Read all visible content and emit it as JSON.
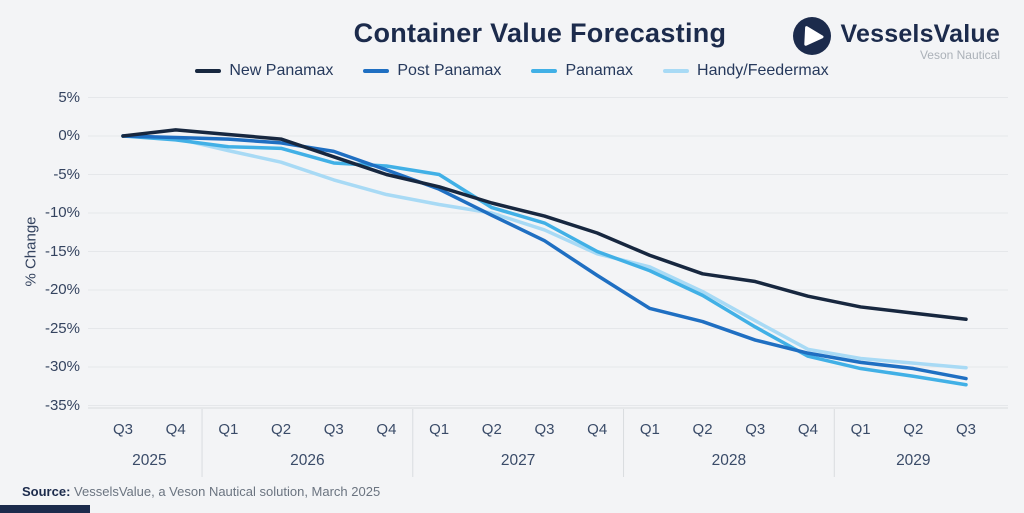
{
  "logo": {
    "brand": "VesselsValue",
    "sub": "Veson Nautical"
  },
  "source": {
    "label": "Source:",
    "text": " VesselsValue, a Veson Nautical solution, March 2025"
  },
  "colors": {
    "navy": "#1c2b4c",
    "grid": "#e5e7ea",
    "axis": "#d9dcdf",
    "background": "#f3f4f6"
  },
  "chart_data": {
    "type": "line",
    "title": "Container Value Forecasting",
    "ylabel": "% Change",
    "ylim": [
      -35,
      5
    ],
    "yticks": [
      5,
      0,
      -5,
      -10,
      -15,
      -20,
      -25,
      -30,
      -35
    ],
    "ytick_suffix": "%",
    "grid": true,
    "legend_position": "top",
    "categories": [
      "Q3",
      "Q4",
      "Q1",
      "Q2",
      "Q3",
      "Q4",
      "Q1",
      "Q2",
      "Q3",
      "Q4",
      "Q1",
      "Q2",
      "Q3",
      "Q4",
      "Q1",
      "Q2",
      "Q3"
    ],
    "year_groups": [
      {
        "year": "2025",
        "quarters": 2
      },
      {
        "year": "2026",
        "quarters": 4
      },
      {
        "year": "2027",
        "quarters": 4
      },
      {
        "year": "2028",
        "quarters": 4
      },
      {
        "year": "2029",
        "quarters": 3
      }
    ],
    "series": [
      {
        "name": "New Panamax",
        "color": "#17273f",
        "values": [
          0,
          0.8,
          0.2,
          -0.4,
          -2.7,
          -5.0,
          -6.6,
          -8.7,
          -10.4,
          -12.6,
          -15.5,
          -17.9,
          -18.9,
          -20.8,
          -22.2,
          -23.0,
          -23.8
        ]
      },
      {
        "name": "Post Panamax",
        "color": "#1f6fc2",
        "values": [
          0,
          -0.2,
          -0.4,
          -0.9,
          -2.0,
          -4.4,
          -6.9,
          -10.3,
          -13.6,
          -18.1,
          -22.4,
          -24.1,
          -26.5,
          -28.2,
          -29.4,
          -30.2,
          -31.5
        ]
      },
      {
        "name": "Panamax",
        "color": "#41b0e6",
        "values": [
          0,
          -0.5,
          -1.4,
          -1.6,
          -3.5,
          -3.9,
          -5.0,
          -9.3,
          -11.3,
          -15.0,
          -17.5,
          -20.7,
          -24.8,
          -28.6,
          -30.2,
          -31.2,
          -32.3
        ]
      },
      {
        "name": "Handy/Feedermax",
        "color": "#a8daf5",
        "values": [
          0,
          -0.3,
          -1.9,
          -3.4,
          -5.7,
          -7.6,
          -8.9,
          -10.0,
          -12.2,
          -15.3,
          -17.0,
          -20.2,
          -24.0,
          -27.7,
          -28.9,
          -29.5,
          -30.1
        ]
      }
    ]
  }
}
